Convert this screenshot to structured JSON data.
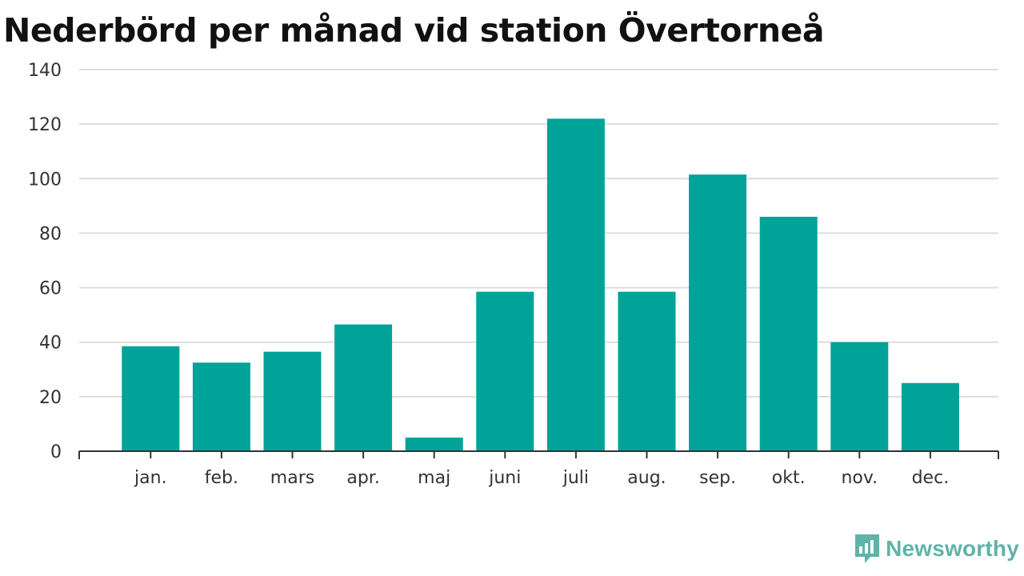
{
  "title": "Nederbörd per månad vid station Övertorneå",
  "brand": {
    "name": "Newsworthy",
    "icon": "newsworthy-logo-icon",
    "color": "#5fb3a8"
  },
  "chart_data": {
    "type": "bar",
    "title": "Nederbörd per månad vid station Övertorneå",
    "xlabel": "",
    "ylabel": "",
    "categories": [
      "jan.",
      "feb.",
      "mars",
      "apr.",
      "maj",
      "juni",
      "juli",
      "aug.",
      "sep.",
      "okt.",
      "nov.",
      "dec."
    ],
    "values": [
      38.5,
      32.5,
      36.5,
      46.5,
      5,
      58.5,
      122,
      58.5,
      101.5,
      86,
      40,
      25
    ],
    "ylim": [
      0,
      140
    ],
    "yticks": [
      0,
      20,
      40,
      60,
      80,
      100,
      120,
      140
    ],
    "grid": true,
    "legend": "none",
    "bar_color": "#00a398",
    "grid_color": "#dddddd",
    "axis_color": "#333333"
  }
}
